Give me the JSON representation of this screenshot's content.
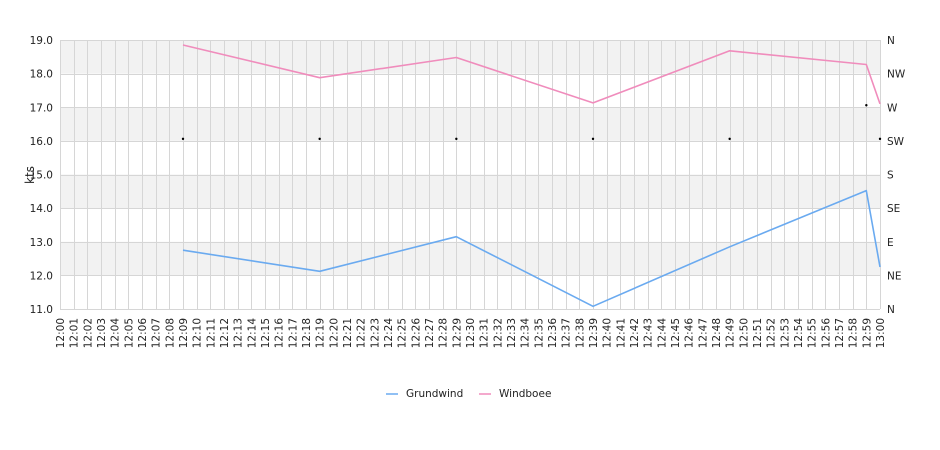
{
  "chart_data": {
    "type": "line",
    "ylabel": "kts",
    "ylim": [
      11.0,
      19.0
    ],
    "y_ticks": [
      "11.0",
      "12.0",
      "13.0",
      "14.0",
      "15.0",
      "16.0",
      "17.0",
      "18.0",
      "19.0"
    ],
    "right_axis_labels": [
      "N",
      "NE",
      "E",
      "SE",
      "S",
      "SW",
      "W",
      "NW",
      "N"
    ],
    "x_start": "12:00",
    "x_end": "13:00",
    "x_tick_labels": [
      "12:00",
      "12:01",
      "12:02",
      "12:03",
      "12:04",
      "12:05",
      "12:06",
      "12:07",
      "12:08",
      "12:09",
      "12:10",
      "12:11",
      "12:12",
      "12:13",
      "12:14",
      "12:15",
      "12:16",
      "12:17",
      "12:18",
      "12:19",
      "12:20",
      "12:21",
      "12:22",
      "12:23",
      "12:24",
      "12:25",
      "12:26",
      "12:27",
      "12:28",
      "12:29",
      "12:30",
      "12:31",
      "12:32",
      "12:33",
      "12:34",
      "12:35",
      "12:36",
      "12:37",
      "12:38",
      "12:39",
      "12:40",
      "12:41",
      "12:42",
      "12:43",
      "12:44",
      "12:45",
      "12:46",
      "12:47",
      "12:48",
      "12:49",
      "12:50",
      "12:51",
      "12:52",
      "12:53",
      "12:54",
      "12:55",
      "12:56",
      "12:57",
      "12:58",
      "12:59",
      "13:00"
    ],
    "series": [
      {
        "name": "Grundwind",
        "color": "#6aaaf0",
        "points": [
          {
            "x": "12:09",
            "y": 12.75
          },
          {
            "x": "12:19",
            "y": 12.12
          },
          {
            "x": "12:29",
            "y": 13.15
          },
          {
            "x": "12:39",
            "y": 11.08
          },
          {
            "x": "12:49",
            "y": 12.85
          },
          {
            "x": "12:59",
            "y": 14.52
          },
          {
            "x": "13:00",
            "y": 12.25
          }
        ]
      },
      {
        "name": "Windboee",
        "color": "#f08cbc",
        "points": [
          {
            "x": "12:09",
            "y": 18.85
          },
          {
            "x": "12:19",
            "y": 17.88
          },
          {
            "x": "12:29",
            "y": 18.48
          },
          {
            "x": "12:39",
            "y": 17.13
          },
          {
            "x": "12:49",
            "y": 18.68
          },
          {
            "x": "12:59",
            "y": 18.27
          },
          {
            "x": "13:00",
            "y": 17.1
          }
        ]
      }
    ],
    "direction_markers": [
      {
        "x": "12:09",
        "direction": "SW"
      },
      {
        "x": "12:19",
        "direction": "SW"
      },
      {
        "x": "12:29",
        "direction": "SW"
      },
      {
        "x": "12:39",
        "direction": "SW"
      },
      {
        "x": "12:49",
        "direction": "SW"
      },
      {
        "x": "12:59",
        "direction": "W"
      },
      {
        "x": "13:00",
        "direction": "SW"
      }
    ],
    "grid": true,
    "legend_position": "bottom-center",
    "colors": {
      "band": "#f2f2f2",
      "grid": "#d6d6d6",
      "marker": "#000000"
    }
  }
}
